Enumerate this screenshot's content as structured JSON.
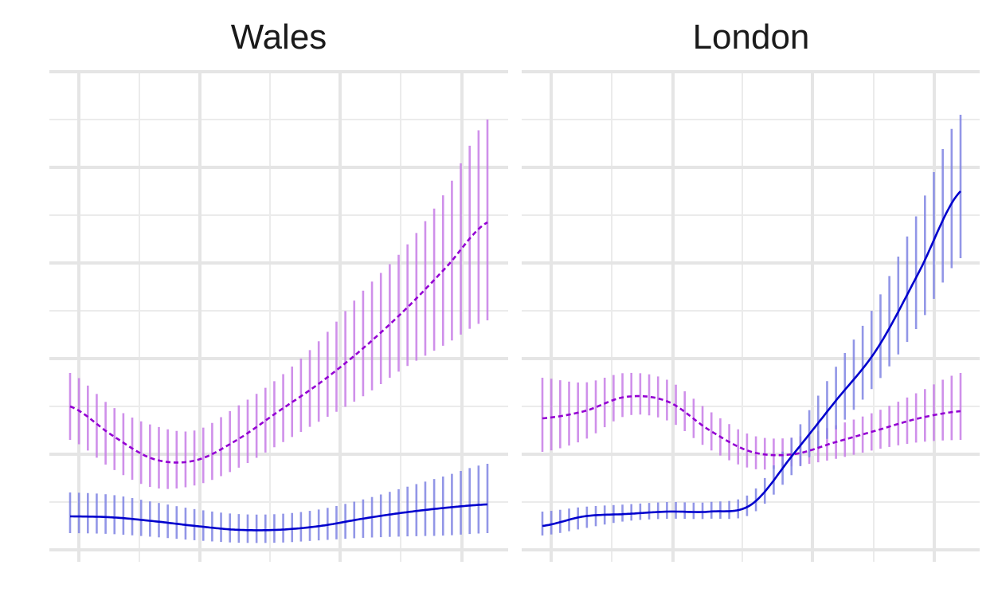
{
  "chart_data": [
    {
      "type": "line",
      "title": "Wales",
      "xlabel": "",
      "ylabel": "",
      "grid": true,
      "legend": "none",
      "xlim": [
        0,
        1
      ],
      "ylim": [
        0,
        1
      ],
      "x": [
        0.0,
        0.1,
        0.2,
        0.3,
        0.4,
        0.5,
        0.6,
        0.7,
        0.8,
        0.9,
        1.0
      ],
      "series": [
        {
          "color": "#9400D3",
          "linestyle": "dashed",
          "values": [
            0.3,
            0.24,
            0.19,
            0.187,
            0.23,
            0.29,
            0.35,
            0.42,
            0.5,
            0.59,
            0.685
          ],
          "lower": [
            0.23,
            0.17,
            0.13,
            0.135,
            0.17,
            0.22,
            0.27,
            0.32,
            0.38,
            0.43,
            0.48
          ],
          "upper": [
            0.37,
            0.3,
            0.26,
            0.25,
            0.3,
            0.36,
            0.44,
            0.54,
            0.63,
            0.75,
            0.9
          ]
        },
        {
          "color": "#0000CD",
          "linestyle": "solid",
          "values": [
            0.07,
            0.068,
            0.06,
            0.05,
            0.042,
            0.042,
            0.05,
            0.065,
            0.078,
            0.088,
            0.095
          ],
          "lower": [
            0.035,
            0.033,
            0.027,
            0.02,
            0.015,
            0.015,
            0.02,
            0.025,
            0.028,
            0.03,
            0.035
          ],
          "upper": [
            0.12,
            0.115,
            0.1,
            0.085,
            0.075,
            0.075,
            0.085,
            0.105,
            0.13,
            0.155,
            0.18
          ]
        }
      ]
    },
    {
      "type": "line",
      "title": "London",
      "xlabel": "",
      "ylabel": "",
      "grid": true,
      "legend": "none",
      "xlim": [
        0,
        1
      ],
      "ylim": [
        0,
        1
      ],
      "x": [
        0.0,
        0.1,
        0.2,
        0.3,
        0.4,
        0.5,
        0.6,
        0.7,
        0.8,
        0.9,
        1.0
      ],
      "series": [
        {
          "color": "#9400D3",
          "linestyle": "dashed",
          "values": [
            0.275,
            0.29,
            0.32,
            0.31,
            0.25,
            0.205,
            0.2,
            0.225,
            0.25,
            0.275,
            0.29
          ],
          "lower": [
            0.205,
            0.23,
            0.28,
            0.27,
            0.21,
            0.17,
            0.175,
            0.19,
            0.21,
            0.225,
            0.23
          ],
          "upper": [
            0.36,
            0.35,
            0.37,
            0.355,
            0.29,
            0.24,
            0.235,
            0.26,
            0.29,
            0.33,
            0.37
          ]
        },
        {
          "color": "#0000CD",
          "linestyle": "solid",
          "values": [
            0.05,
            0.07,
            0.075,
            0.08,
            0.08,
            0.095,
            0.2,
            0.31,
            0.42,
            0.58,
            0.75
          ],
          "lower": [
            0.03,
            0.045,
            0.06,
            0.065,
            0.065,
            0.075,
            0.16,
            0.25,
            0.35,
            0.47,
            0.61
          ],
          "upper": [
            0.08,
            0.09,
            0.095,
            0.1,
            0.1,
            0.12,
            0.24,
            0.38,
            0.52,
            0.71,
            0.91
          ]
        }
      ]
    }
  ]
}
